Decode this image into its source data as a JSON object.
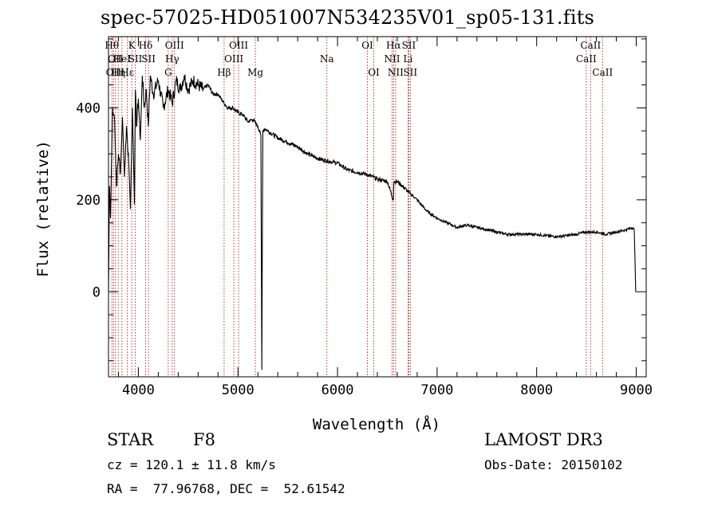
{
  "chart_data": {
    "type": "line",
    "title": "spec-57025-HD051007N534235V01_sp05-131.fits",
    "xlabel": "Wavelength (Å)",
    "ylabel": "Flux (relative)",
    "xlim": [
      3700,
      9100
    ],
    "ylim": [
      -185,
      555
    ],
    "xticks": [
      4000,
      5000,
      6000,
      7000,
      8000,
      9000
    ],
    "yticks": [
      0,
      200,
      400
    ],
    "grid": false,
    "series": [
      {
        "name": "flux",
        "x": [
          3700,
          3710,
          3720,
          3740,
          3760,
          3780,
          3800,
          3820,
          3840,
          3860,
          3880,
          3900,
          3920,
          3940,
          3960,
          3970,
          3980,
          4000,
          4020,
          4040,
          4060,
          4080,
          4100,
          4120,
          4150,
          4200,
          4250,
          4300,
          4340,
          4380,
          4420,
          4460,
          4500,
          4550,
          4600,
          4650,
          4700,
          4750,
          4800,
          4861,
          4900,
          4950,
          5000,
          5050,
          5100,
          5150,
          5200,
          5230,
          5240,
          5250,
          5270,
          5300,
          5400,
          5500,
          5600,
          5700,
          5800,
          5890,
          6000,
          6100,
          6200,
          6300,
          6400,
          6500,
          6560,
          6565,
          6570,
          6600,
          6700,
          6800,
          6900,
          7000,
          7100,
          7200,
          7300,
          7400,
          7500,
          7600,
          7700,
          7800,
          7900,
          8000,
          8100,
          8200,
          8300,
          8400,
          8500,
          8600,
          8700,
          8800,
          8900,
          8960,
          8980,
          8995,
          9000
        ],
        "values": [
          0,
          230,
          160,
          400,
          380,
          230,
          300,
          260,
          380,
          250,
          360,
          300,
          180,
          400,
          190,
          440,
          360,
          420,
          330,
          470,
          400,
          440,
          360,
          470,
          430,
          460,
          400,
          440,
          410,
          460,
          440,
          470,
          440,
          460,
          450,
          440,
          450,
          430,
          430,
          410,
          400,
          400,
          390,
          385,
          370,
          375,
          360,
          340,
          -170,
          350,
          355,
          350,
          335,
          325,
          315,
          300,
          290,
          285,
          280,
          265,
          260,
          255,
          245,
          240,
          200,
          235,
          240,
          240,
          220,
          200,
          175,
          160,
          150,
          140,
          145,
          140,
          135,
          130,
          125,
          125,
          125,
          125,
          122,
          120,
          122,
          125,
          130,
          130,
          125,
          130,
          135,
          140,
          135,
          0,
          0
        ]
      }
    ],
    "lines": [
      {
        "x": 3734,
        "label": "Hθ",
        "row": 1
      },
      {
        "x": 3750,
        "label": "OII",
        "row": 3
      },
      {
        "x": 3770,
        "label": "OII",
        "row": 2
      },
      {
        "x": 3798,
        "label": "Hη",
        "row": 3
      },
      {
        "x": 3835,
        "label": "HeI",
        "row": 2
      },
      {
        "x": 3889,
        "label": "Hε",
        "row": 3
      },
      {
        "x": 3934,
        "label": "K",
        "row": 1
      },
      {
        "x": 3969,
        "label": "SII",
        "row": 2
      },
      {
        "x": 4072,
        "label": "Hδ",
        "row": 1
      },
      {
        "x": 4102,
        "label": "SII",
        "row": 2
      },
      {
        "x": 4300,
        "label": "G",
        "row": 3
      },
      {
        "x": 4340,
        "label": "Hγ",
        "row": 2
      },
      {
        "x": 4363,
        "label": "OIII",
        "row": 1
      },
      {
        "x": 4861,
        "label": "Hβ",
        "row": 3
      },
      {
        "x": 4959,
        "label": "OIII",
        "row": 2
      },
      {
        "x": 5007,
        "label": "OIII",
        "row": 1
      },
      {
        "x": 5175,
        "label": "Mg",
        "row": 3
      },
      {
        "x": 5893,
        "label": "Na",
        "row": 2
      },
      {
        "x": 6300,
        "label": "OI",
        "row": 1
      },
      {
        "x": 6364,
        "label": "OI",
        "row": 3
      },
      {
        "x": 6548,
        "label": "NII",
        "row": 2
      },
      {
        "x": 6563,
        "label": "Hα",
        "row": 1
      },
      {
        "x": 6583,
        "label": "NII",
        "row": 3
      },
      {
        "x": 6708,
        "label": "Li",
        "row": 2
      },
      {
        "x": 6716,
        "label": "SII",
        "row": 1
      },
      {
        "x": 6731,
        "label": "SII",
        "row": 3
      },
      {
        "x": 8498,
        "label": "CaII",
        "row": 2
      },
      {
        "x": 8542,
        "label": "CaII",
        "row": 1
      },
      {
        "x": 8662,
        "label": "CaII",
        "row": 3
      }
    ]
  },
  "info": {
    "object_class": "STAR",
    "subclass": "F8",
    "cz": "cz = 120.1 ± 11.8 km/s",
    "coords": "RA =  77.96768, DEC =  52.61542",
    "survey": "LAMOST DR3",
    "obs_date": "Obs-Date: 20150102"
  }
}
